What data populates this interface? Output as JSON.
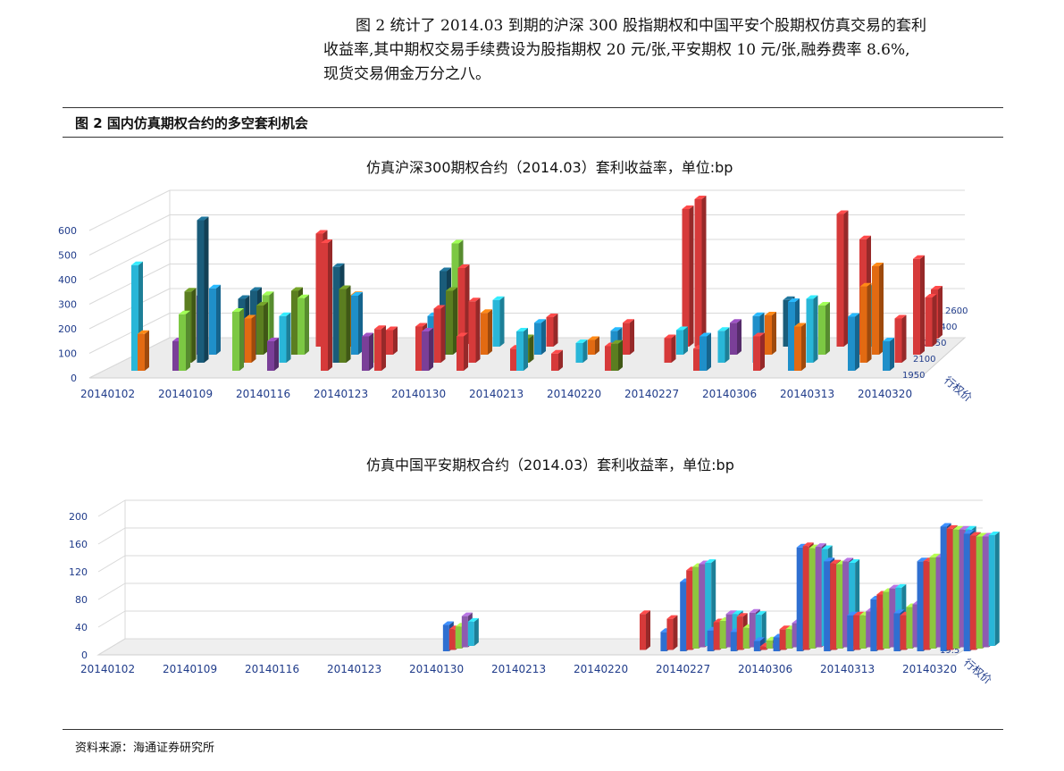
{
  "paragraph": {
    "line1": "图 2 统计了 2014.03 到期的沪深 300 股指期权和中国平安个股期权仿真交易的套利",
    "line2": "收益率,其中期权交易手续费设为股指期权 20 元/张,平安期权 10 元/张,融券费率 8.6%,",
    "line3": "现货交易佣金万分之八。"
  },
  "figure_caption": "图  2 国内仿真期权合约的多空套利机会",
  "source_note": "资料来源：海通证券研究所",
  "chart_data": [
    {
      "type": "bar",
      "title": "仿真沪深300期权合约（2014.03）套利收益率，单位:bp",
      "x_tick_labels": [
        "20140102",
        "20140109",
        "20140116",
        "20140123",
        "20140130",
        "20140213",
        "20140220",
        "20140227",
        "20140306",
        "20140313",
        "20140320"
      ],
      "ylim": [
        0,
        600
      ],
      "y_ticks": [
        "0",
        "100",
        "200",
        "300",
        "400",
        "500",
        "600"
      ],
      "depth_axis_label": "行权价",
      "depth_tick_labels": [
        "1950",
        "2100",
        "2250",
        "2400",
        "2600"
      ],
      "grid": true,
      "series_colors": [
        "#1f8fc9",
        "#e26a12",
        "#7a3f98",
        "#7cc843",
        "#1a5c7a",
        "#d63a3a",
        "#5b7e20",
        "#29b6d8"
      ],
      "bars": [
        {
          "x": 0,
          "d": 0,
          "v": 430,
          "c": 7
        },
        {
          "x": 0,
          "d": 0,
          "v": 150,
          "c": 1
        },
        {
          "x": 1,
          "d": 0,
          "v": 120,
          "c": 2
        },
        {
          "x": 1,
          "d": 0,
          "v": 230,
          "c": 3
        },
        {
          "x": 1,
          "d": 1,
          "v": 580,
          "c": 4
        },
        {
          "x": 1,
          "d": 1,
          "v": 290,
          "c": 6
        },
        {
          "x": 1,
          "d": 2,
          "v": 270,
          "c": 0
        },
        {
          "x": 1,
          "d": 2,
          "v": 240,
          "c": 2
        },
        {
          "x": 2,
          "d": 0,
          "v": 240,
          "c": 3
        },
        {
          "x": 2,
          "d": 1,
          "v": 260,
          "c": 4
        },
        {
          "x": 2,
          "d": 1,
          "v": 180,
          "c": 1
        },
        {
          "x": 2,
          "d": 2,
          "v": 260,
          "c": 4
        },
        {
          "x": 2,
          "d": 2,
          "v": 200,
          "c": 6
        },
        {
          "x": 2,
          "d": 3,
          "v": 210,
          "c": 3
        },
        {
          "x": 3,
          "d": 1,
          "v": 190,
          "c": 7
        },
        {
          "x": 3,
          "d": 2,
          "v": 260,
          "c": 6
        },
        {
          "x": 3,
          "d": 2,
          "v": 230,
          "c": 3
        },
        {
          "x": 3,
          "d": 3,
          "v": 460,
          "c": 5
        },
        {
          "x": 3,
          "d": 0,
          "v": 120,
          "c": 2
        },
        {
          "x": 4,
          "d": 1,
          "v": 390,
          "c": 4
        },
        {
          "x": 4,
          "d": 1,
          "v": 300,
          "c": 6
        },
        {
          "x": 4,
          "d": 2,
          "v": 240,
          "c": 0
        },
        {
          "x": 4,
          "d": 3,
          "v": 210,
          "c": 1
        },
        {
          "x": 4,
          "d": 0,
          "v": 520,
          "c": 5
        },
        {
          "x": 5,
          "d": 0,
          "v": 170,
          "c": 5
        },
        {
          "x": 5,
          "d": 0,
          "v": 140,
          "c": 2
        },
        {
          "x": 5,
          "d": 1,
          "v": 120,
          "c": 3
        },
        {
          "x": 5,
          "d": 2,
          "v": 100,
          "c": 5
        },
        {
          "x": 6,
          "d": 0,
          "v": 180,
          "c": 5
        },
        {
          "x": 6,
          "d": 0,
          "v": 160,
          "c": 2
        },
        {
          "x": 6,
          "d": 1,
          "v": 190,
          "c": 0
        },
        {
          "x": 6,
          "d": 1,
          "v": 220,
          "c": 5
        },
        {
          "x": 6,
          "d": 2,
          "v": 340,
          "c": 4
        },
        {
          "x": 6,
          "d": 2,
          "v": 260,
          "c": 6
        },
        {
          "x": 6,
          "d": 3,
          "v": 420,
          "c": 3
        },
        {
          "x": 6,
          "d": 3,
          "v": 320,
          "c": 5
        },
        {
          "x": 7,
          "d": 0,
          "v": 140,
          "c": 5
        },
        {
          "x": 7,
          "d": 1,
          "v": 250,
          "c": 5
        },
        {
          "x": 7,
          "d": 2,
          "v": 170,
          "c": 1
        },
        {
          "x": 7,
          "d": 3,
          "v": 190,
          "c": 7
        },
        {
          "x": 8,
          "d": 0,
          "v": 90,
          "c": 5
        },
        {
          "x": 8,
          "d": 0,
          "v": 160,
          "c": 7
        },
        {
          "x": 8,
          "d": 1,
          "v": 100,
          "c": 6
        },
        {
          "x": 8,
          "d": 2,
          "v": 130,
          "c": 0
        },
        {
          "x": 8,
          "d": 3,
          "v": 120,
          "c": 5
        },
        {
          "x": 9,
          "d": 0,
          "v": 70,
          "c": 5
        },
        {
          "x": 9,
          "d": 1,
          "v": 80,
          "c": 7
        },
        {
          "x": 9,
          "d": 2,
          "v": 60,
          "c": 1
        },
        {
          "x": 10,
          "d": 0,
          "v": 100,
          "c": 5
        },
        {
          "x": 10,
          "d": 0,
          "v": 110,
          "c": 6
        },
        {
          "x": 10,
          "d": 1,
          "v": 130,
          "c": 0
        },
        {
          "x": 10,
          "d": 2,
          "v": 130,
          "c": 5
        },
        {
          "x": 11,
          "d": 1,
          "v": 100,
          "c": 5
        },
        {
          "x": 11,
          "d": 2,
          "v": 100,
          "c": 7
        },
        {
          "x": 11,
          "d": 3,
          "v": 600,
          "c": 5
        },
        {
          "x": 11,
          "d": 3,
          "v": 560,
          "c": 5
        },
        {
          "x": 12,
          "d": 0,
          "v": 90,
          "c": 5
        },
        {
          "x": 12,
          "d": 0,
          "v": 140,
          "c": 0
        },
        {
          "x": 12,
          "d": 1,
          "v": 130,
          "c": 7
        },
        {
          "x": 12,
          "d": 2,
          "v": 130,
          "c": 2
        },
        {
          "x": 13,
          "d": 0,
          "v": 140,
          "c": 5
        },
        {
          "x": 13,
          "d": 1,
          "v": 190,
          "c": 0
        },
        {
          "x": 13,
          "d": 2,
          "v": 160,
          "c": 1
        },
        {
          "x": 13,
          "d": 3,
          "v": 190,
          "c": 4
        },
        {
          "x": 14,
          "d": 0,
          "v": 280,
          "c": 0
        },
        {
          "x": 14,
          "d": 0,
          "v": 180,
          "c": 1
        },
        {
          "x": 14,
          "d": 1,
          "v": 260,
          "c": 7
        },
        {
          "x": 14,
          "d": 2,
          "v": 200,
          "c": 3
        },
        {
          "x": 14,
          "d": 3,
          "v": 540,
          "c": 5
        },
        {
          "x": 15,
          "d": 0,
          "v": 220,
          "c": 0
        },
        {
          "x": 15,
          "d": 1,
          "v": 310,
          "c": 1
        },
        {
          "x": 15,
          "d": 2,
          "v": 360,
          "c": 1
        },
        {
          "x": 15,
          "d": 2,
          "v": 470,
          "c": 5
        },
        {
          "x": 15,
          "d": 3,
          "v": 250,
          "c": 7
        },
        {
          "x": 16,
          "d": 0,
          "v": 120,
          "c": 0
        },
        {
          "x": 16,
          "d": 1,
          "v": 180,
          "c": 5
        },
        {
          "x": 16,
          "d": 2,
          "v": 390,
          "c": 5
        },
        {
          "x": 16,
          "d": 3,
          "v": 200,
          "c": 5
        },
        {
          "x": 16,
          "d": 4,
          "v": 200,
          "c": 5
        }
      ]
    },
    {
      "type": "bar",
      "title": "仿真中国平安期权合约（2014.03）套利收益率，单位:bp",
      "x_tick_labels": [
        "20140102",
        "20140109",
        "20140116",
        "20140123",
        "20140130",
        "20140213",
        "20140220",
        "20140227",
        "20140306",
        "20140313",
        "20140320"
      ],
      "ylim": [
        0,
        200
      ],
      "y_ticks": [
        "0",
        "40",
        "80",
        "120",
        "160",
        "200"
      ],
      "depth_axis_label": "行权价",
      "depth_tick_labels": [
        "19.5",
        "21"
      ],
      "grid": true,
      "series_colors": [
        "#2f6fd1",
        "#d63a3a",
        "#8dc63f",
        "#8e5bb0",
        "#29b6d8"
      ],
      "groups": [
        {
          "x": 4.55,
          "values": [
            38,
            30,
            32,
            45,
            35
          ]
        },
        {
          "x": 7.0,
          "values": [
            0,
            52,
            0,
            0,
            0
          ]
        },
        {
          "x": 7.35,
          "values": [
            28,
            45,
            0,
            0,
            0
          ]
        },
        {
          "x": 7.6,
          "values": [
            100,
            115,
            118,
            120,
            120
          ]
        },
        {
          "x": 7.95,
          "values": [
            30,
            40,
            40,
            48,
            46
          ]
        },
        {
          "x": 8.25,
          "values": [
            28,
            48,
            30,
            50,
            45
          ]
        },
        {
          "x": 8.55,
          "values": [
            15,
            5,
            12,
            5,
            8
          ]
        },
        {
          "x": 8.8,
          "values": [
            20,
            30,
            28,
            35,
            32
          ]
        },
        {
          "x": 9.1,
          "values": [
            150,
            150,
            145,
            145,
            140
          ]
        },
        {
          "x": 9.45,
          "values": [
            130,
            125,
            122,
            124,
            120
          ]
        },
        {
          "x": 9.75,
          "values": [
            52,
            50,
            48,
            52,
            50
          ]
        },
        {
          "x": 10.05,
          "values": [
            75,
            80,
            82,
            85,
            84
          ]
        },
        {
          "x": 10.35,
          "values": [
            55,
            50,
            60,
            62,
            62
          ]
        },
        {
          "x": 10.65,
          "values": [
            130,
            128,
            132,
            130,
            128
          ]
        },
        {
          "x": 10.95,
          "values": [
            180,
            175,
            172,
            170,
            168
          ]
        },
        {
          "x": 11.25,
          "values": [
            170,
            165,
            162,
            160,
            160
          ]
        }
      ]
    }
  ]
}
